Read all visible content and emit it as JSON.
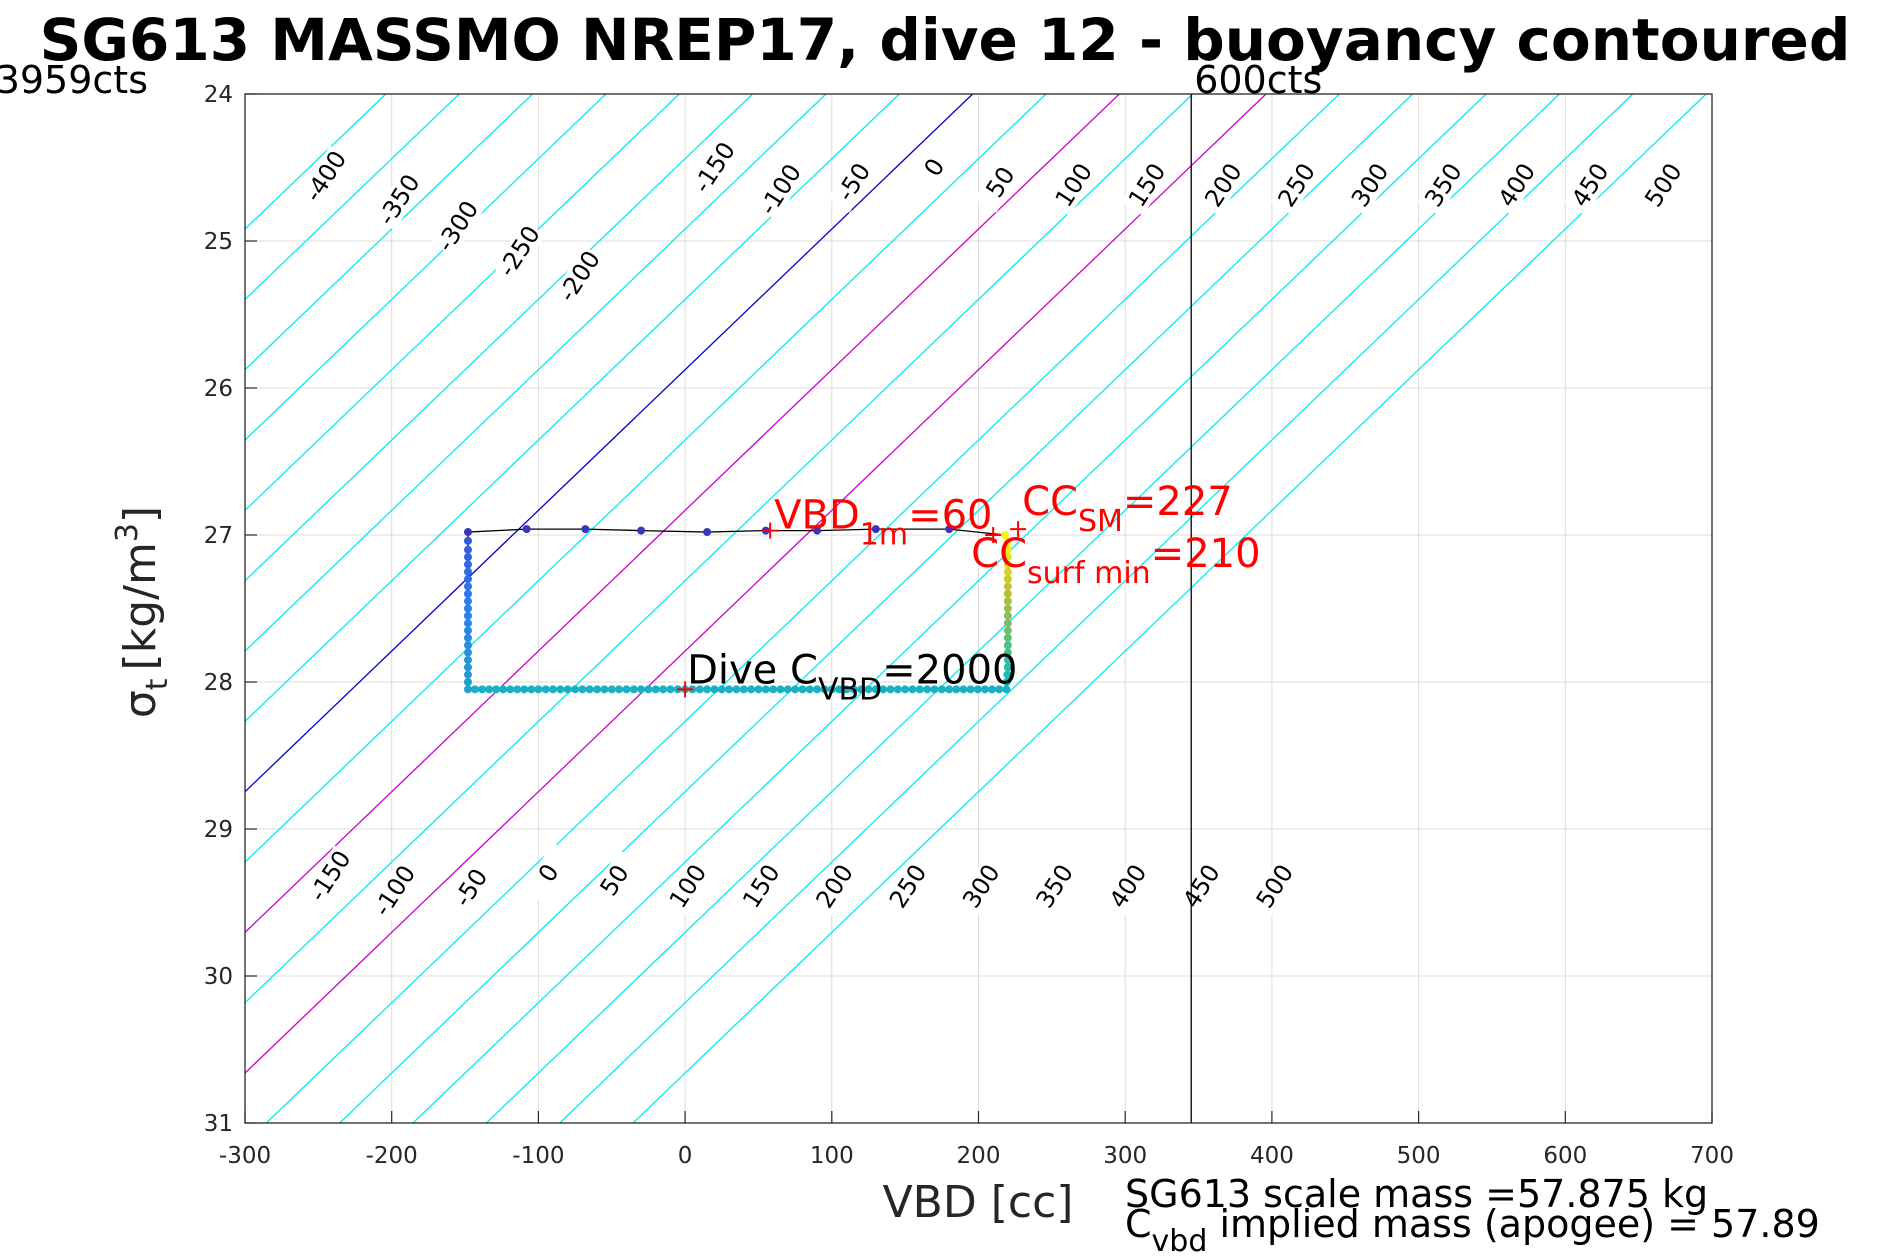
{
  "chart_data": {
    "type": "scatter",
    "title": "SG613 MASSMO NREP17, dive 12 - buoyancy contoured",
    "xlabel": "VBD [cc]",
    "ylabel": "σ",
    "ylabel_sub": "t",
    "ylabel_unit": "[kg/m",
    "ylabel_sup": "3",
    "ylabel_close": "]",
    "xlim": [
      -300,
      700
    ],
    "ylim": [
      24,
      31
    ],
    "y_reversed": true,
    "grid": true,
    "xticks": [
      -300,
      -200,
      -100,
      0,
      100,
      200,
      300,
      400,
      500,
      600,
      700
    ],
    "yticks": [
      24,
      25,
      26,
      27,
      28,
      29,
      30,
      31
    ],
    "corner_left": "3959cts",
    "corner_right": "600cts",
    "vline_x": 345,
    "buoyancy_contours": {
      "values": [
        -400,
        -350,
        -300,
        -250,
        -200,
        -150,
        -100,
        -50,
        0,
        50,
        100,
        150,
        200,
        250,
        300,
        350,
        400,
        450,
        500
      ],
      "slope_cc_per_sigma": 104.5,
      "x_at_sigma24": 196,
      "colors": {
        "zero": "#0000cc",
        "highlight": "#cc00cc",
        "other": "#00eeee"
      },
      "highlight_values": [
        100,
        200
      ],
      "top_labels": [
        {
          "text": "-400",
          "x": -245,
          "y": 24.56
        },
        {
          "text": "-350",
          "x": -195,
          "y": 24.72
        },
        {
          "text": "-300",
          "x": -155,
          "y": 24.9
        },
        {
          "text": "-250",
          "x": -113,
          "y": 25.07
        },
        {
          "text": "-200",
          "x": -72,
          "y": 25.24
        },
        {
          "text": "-150",
          "x": 20,
          "y": 24.5
        },
        {
          "text": "-100",
          "x": 65,
          "y": 24.65
        },
        {
          "text": "-50",
          "x": 115,
          "y": 24.6
        },
        {
          "text": "0",
          "x": 170,
          "y": 24.5
        },
        {
          "text": "50",
          "x": 215,
          "y": 24.6
        },
        {
          "text": "100",
          "x": 265,
          "y": 24.62
        },
        {
          "text": "150",
          "x": 315,
          "y": 24.62
        },
        {
          "text": "200",
          "x": 367,
          "y": 24.62
        },
        {
          "text": "250",
          "x": 417,
          "y": 24.62
        },
        {
          "text": "300",
          "x": 467,
          "y": 24.62
        },
        {
          "text": "350",
          "x": 517,
          "y": 24.62
        },
        {
          "text": "400",
          "x": 567,
          "y": 24.62
        },
        {
          "text": "450",
          "x": 617,
          "y": 24.62
        },
        {
          "text": "500",
          "x": 667,
          "y": 24.62
        }
      ],
      "bottom_labels": [
        {
          "text": "-150",
          "x": -242,
          "y": 29.32
        },
        {
          "text": "-100",
          "x": -198,
          "y": 29.42
        },
        {
          "text": "-50",
          "x": -146,
          "y": 29.4
        },
        {
          "text": "0",
          "x": -93,
          "y": 29.3
        },
        {
          "text": "50",
          "x": -48,
          "y": 29.35
        },
        {
          "text": "100",
          "x": 2,
          "y": 29.39
        },
        {
          "text": "150",
          "x": 52,
          "y": 29.39
        },
        {
          "text": "200",
          "x": 102,
          "y": 29.39
        },
        {
          "text": "250",
          "x": 152,
          "y": 29.39
        },
        {
          "text": "300",
          "x": 202,
          "y": 29.39
        },
        {
          "text": "350",
          "x": 252,
          "y": 29.39
        },
        {
          "text": "400",
          "x": 302,
          "y": 29.39
        },
        {
          "text": "450",
          "x": 352,
          "y": 29.39
        },
        {
          "text": "500",
          "x": 402,
          "y": 29.39
        }
      ]
    },
    "trajectory": {
      "line_color": "#000000",
      "points": [
        [
          -148,
          26.98
        ],
        [
          -108,
          26.96
        ],
        [
          -68,
          26.96
        ],
        [
          -30,
          26.97
        ],
        [
          15,
          26.98
        ],
        [
          55,
          26.97
        ],
        [
          90,
          26.97
        ],
        [
          130,
          26.96
        ],
        [
          180,
          26.96
        ],
        [
          218,
          27.0
        ],
        [
          220,
          27.05
        ],
        [
          220,
          27.15
        ],
        [
          220,
          27.3
        ],
        [
          220,
          27.45
        ],
        [
          220,
          27.6
        ],
        [
          220,
          27.75
        ],
        [
          220,
          27.9
        ],
        [
          219,
          28.05
        ],
        [
          180,
          28.05
        ],
        [
          140,
          28.05
        ],
        [
          100,
          28.05
        ],
        [
          60,
          28.05
        ],
        [
          20,
          28.05
        ],
        [
          -20,
          28.05
        ],
        [
          -60,
          28.05
        ],
        [
          -100,
          28.05
        ],
        [
          -148,
          28.05
        ],
        [
          -148,
          27.9
        ],
        [
          -148,
          27.7
        ],
        [
          -148,
          27.5
        ],
        [
          -148,
          27.3
        ],
        [
          -148,
          27.1
        ],
        [
          -148,
          26.98
        ]
      ]
    },
    "markers": [
      {
        "label": "Dive C",
        "sub": "VBD",
        "value": "=2000",
        "x": 0,
        "y": 28.05,
        "color": "#000000"
      },
      {
        "label": "VBD",
        "sub": "1m",
        "value": "=60",
        "x": 58,
        "y": 26.97,
        "color": "#ff0000"
      },
      {
        "label": "CC",
        "sub": "SM",
        "value": "=227",
        "x": 227,
        "y": 26.96,
        "color": "#ff0000"
      },
      {
        "label": "CC",
        "sub": "surf min",
        "value": "=210",
        "x": 210,
        "y": 27.0,
        "color": "#ff0000"
      }
    ],
    "footer_line1": "SG613 scale mass =57.875 kg",
    "footer_line2_main": "C",
    "footer_line2_sub": "vbd",
    "footer_line2_rest": " implied mass (apogee) = 57.89"
  }
}
